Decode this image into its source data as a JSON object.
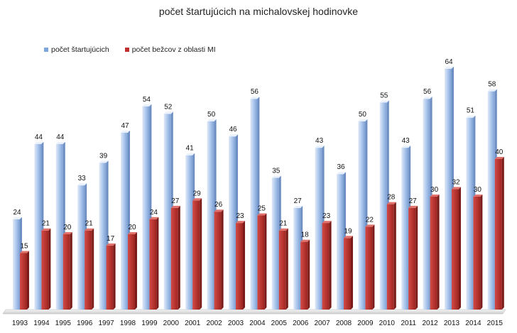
{
  "chart_data": {
    "type": "bar",
    "title": "počet štartujúcich na michalovskej hodinovke",
    "xlabel": "",
    "ylabel": "",
    "ylim": [
      0,
      70
    ],
    "grid": false,
    "legend_position": "top-left",
    "categories": [
      "1993",
      "1994",
      "1995",
      "1996",
      "1997",
      "1998",
      "1999",
      "2000",
      "2001",
      "2002",
      "2003",
      "2004",
      "2005",
      "2006",
      "2007",
      "2008",
      "2009",
      "2010",
      "2011",
      "2012",
      "2013",
      "2014",
      "2015"
    ],
    "series": [
      {
        "name": "počet štartujúcich",
        "color": "#7fa6dc",
        "values": [
          24,
          44,
          44,
          33,
          39,
          47,
          54,
          52,
          41,
          50,
          46,
          56,
          35,
          27,
          43,
          36,
          50,
          55,
          43,
          56,
          64,
          51,
          58
        ]
      },
      {
        "name": "počet bežcov z oblasti MI",
        "color": "#c0302c",
        "values": [
          15,
          21,
          20,
          21,
          17,
          20,
          24,
          27,
          29,
          26,
          23,
          25,
          21,
          18,
          23,
          19,
          22,
          28,
          27,
          30,
          32,
          30,
          40
        ]
      }
    ]
  }
}
